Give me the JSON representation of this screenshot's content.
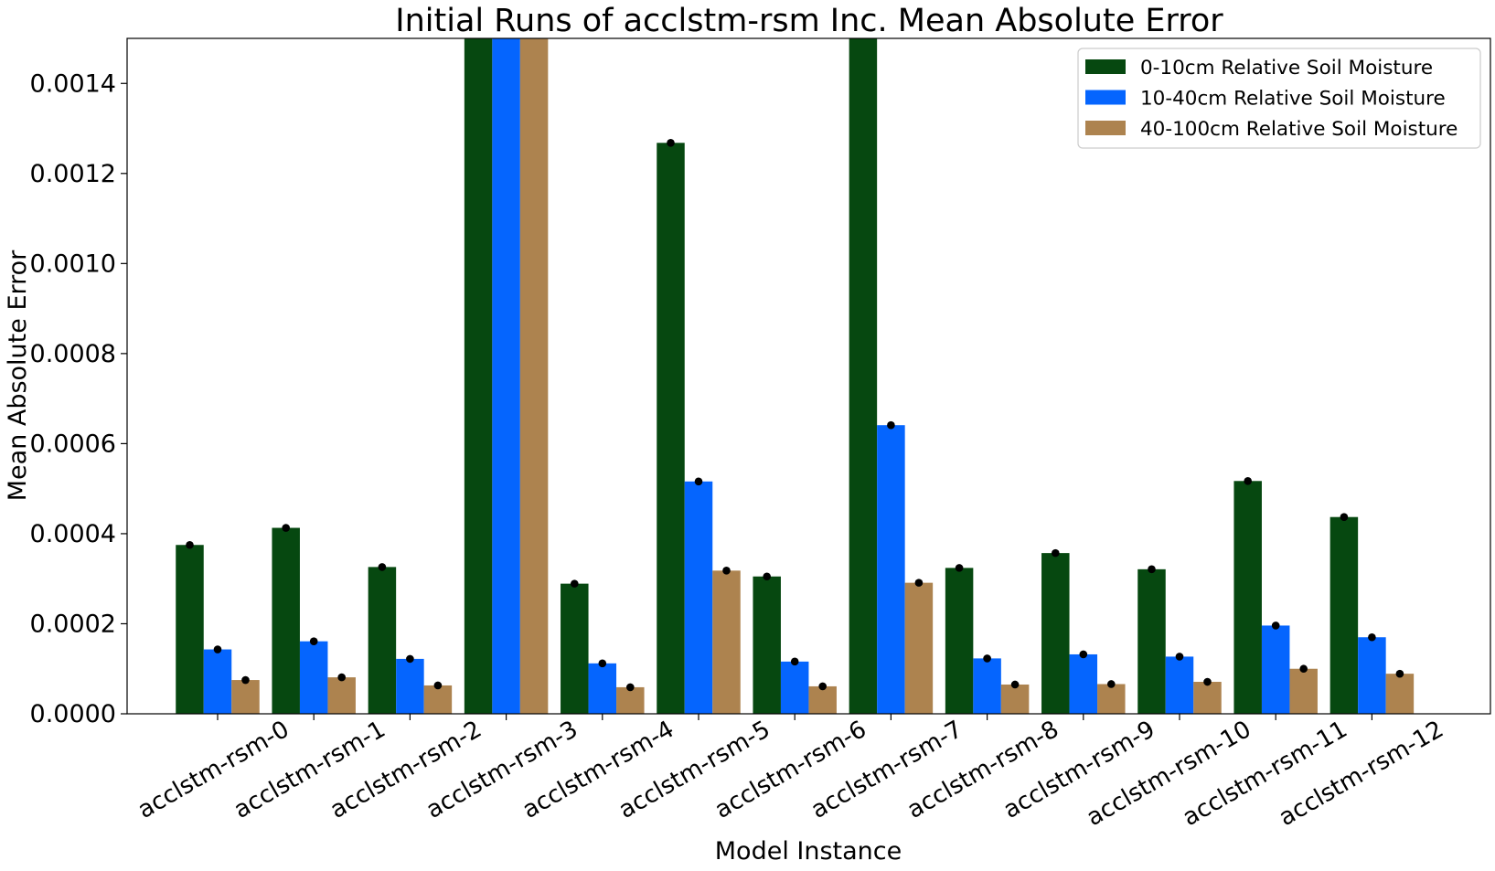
{
  "chart_data": {
    "type": "bar",
    "title": "Initial Runs of acclstm-rsm Inc. Mean Absolute Error",
    "xlabel": "Model Instance",
    "ylabel": "Mean Absolute Error",
    "ylim": [
      0,
      0.0015
    ],
    "yticks": [
      "0.0000",
      "0.0002",
      "0.0004",
      "0.0006",
      "0.0008",
      "0.0010",
      "0.0012",
      "0.0014"
    ],
    "ytick_values": [
      0,
      0.0002,
      0.0004,
      0.0006,
      0.0008,
      0.001,
      0.0012,
      0.0014
    ],
    "grid": false,
    "legend_position": "top-right",
    "categories": [
      "acclstm-rsm-0",
      "acclstm-rsm-1",
      "acclstm-rsm-2",
      "acclstm-rsm-3",
      "acclstm-rsm-4",
      "acclstm-rsm-5",
      "acclstm-rsm-6",
      "acclstm-rsm-7",
      "acclstm-rsm-8",
      "acclstm-rsm-9",
      "acclstm-rsm-10",
      "acclstm-rsm-11",
      "acclstm-rsm-12"
    ],
    "series": [
      {
        "name": "0-10cm Relative Soil Moisture",
        "color": "#064810",
        "values": [
          0.000375,
          0.000413,
          0.000326,
          0.0015,
          0.000289,
          0.001268,
          0.000305,
          0.0015,
          0.000324,
          0.000357,
          0.000321,
          0.000517,
          0.000437
        ]
      },
      {
        "name": "10-40cm Relative Soil Moisture",
        "color": "#0565fe",
        "values": [
          0.000143,
          0.000161,
          0.000122,
          0.0015,
          0.000112,
          0.000516,
          0.000116,
          0.000641,
          0.000123,
          0.000132,
          0.000127,
          0.000196,
          0.00017
        ]
      },
      {
        "name": "40-100cm Relative Soil Moisture",
        "color": "#ad834f",
        "values": [
          7.5e-05,
          8.1e-05,
          6.3e-05,
          0.0015,
          5.9e-05,
          0.000318,
          6.1e-05,
          0.000291,
          6.5e-05,
          6.6e-05,
          7.1e-05,
          0.0001,
          8.9e-05
        ]
      }
    ]
  }
}
